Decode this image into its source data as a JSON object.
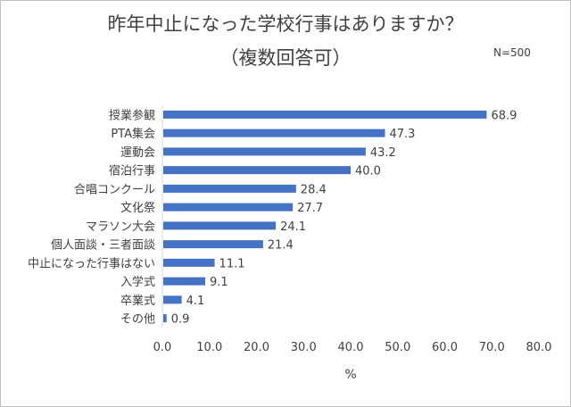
{
  "chart_data": {
    "type": "bar",
    "orientation": "horizontal",
    "title": "昨年中止になった学校行事はありますか？",
    "subtitle": "（複数回答可）",
    "note": "N=500",
    "xlabel": "%",
    "xlim": [
      0,
      80
    ],
    "x_ticks": [
      "0.0",
      "10.0",
      "20.0",
      "30.0",
      "40.0",
      "50.0",
      "60.0",
      "70.0",
      "80.0"
    ],
    "categories": [
      "授業参観",
      "PTA集会",
      "運動会",
      "宿泊行事",
      "合唱コンクール",
      "文化祭",
      "マラソン大会",
      "個人面談・三者面談",
      "中止になった行事はない",
      "入学式",
      "卒業式",
      "その他"
    ],
    "values": [
      68.9,
      47.3,
      43.2,
      40.0,
      28.4,
      27.7,
      24.1,
      21.4,
      11.1,
      9.1,
      4.1,
      0.9
    ],
    "value_labels": [
      "68.9",
      "47.3",
      "43.2",
      "40.0",
      "28.4",
      "27.7",
      "24.1",
      "21.4",
      "11.1",
      "9.1",
      "4.1",
      "0.9"
    ],
    "bar_color": "#4472c4",
    "grid": false,
    "legend": "none"
  }
}
